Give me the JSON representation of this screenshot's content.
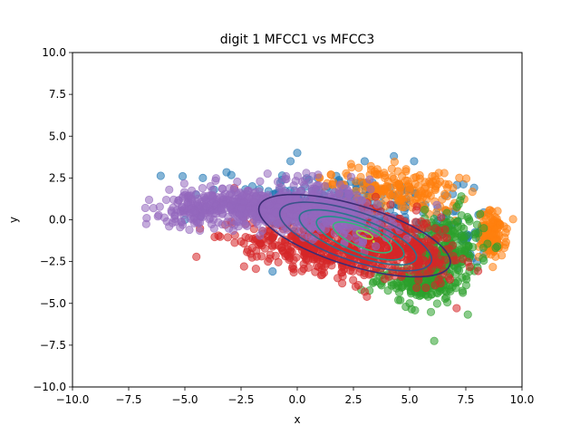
{
  "chart_data": {
    "type": "scatter",
    "title": "digit 1 MFCC1 vs MFCC3",
    "xlabel": "x",
    "ylabel": "y",
    "xlim": [
      -10,
      10
    ],
    "ylim": [
      -10,
      10
    ],
    "xticks": [
      -10,
      -7.5,
      -5,
      -2.5,
      0,
      2.5,
      5,
      7.5,
      10
    ],
    "yticks": [
      -10,
      -7.5,
      -5,
      -2.5,
      0,
      2.5,
      5,
      7.5,
      10
    ],
    "xtick_labels": [
      "−10.0",
      "−7.5",
      "−5.0",
      "−2.5",
      "0.0",
      "2.5",
      "5.0",
      "7.5",
      "10.0"
    ],
    "ytick_labels": [
      "−10.0",
      "−7.5",
      "−5.0",
      "−2.5",
      "0.0",
      "2.5",
      "5.0",
      "7.5",
      "10.0"
    ],
    "grid": false,
    "legend": "none",
    "marker_alpha": 0.55,
    "series": [
      {
        "color": "#1f77b4",
        "clusters": [
          {
            "cx": 2.0,
            "cy": 0.8,
            "sx": 2.0,
            "sy": 1.1,
            "rho": -0.3,
            "n": 220
          },
          {
            "cx": 6.5,
            "cy": -0.5,
            "sx": 1.0,
            "sy": 1.2,
            "rho": -0.2,
            "n": 60
          }
        ],
        "points": [
          [
            0.0,
            4.0
          ],
          [
            -0.3,
            3.5
          ],
          [
            3.0,
            3.5
          ],
          [
            4.3,
            3.8
          ],
          [
            5.2,
            3.5
          ],
          [
            -5.1,
            2.6
          ],
          [
            -4.2,
            2.5
          ],
          [
            -3.7,
            1.8
          ],
          [
            -4.5,
            1.5
          ],
          [
            -4.3,
            0.2
          ],
          [
            -5.0,
            0.0
          ],
          [
            -2.0,
            2.0
          ],
          [
            7.6,
            -1.0
          ],
          [
            7.8,
            -2.3
          ],
          [
            8.0,
            -2.5
          ],
          [
            6.5,
            -3.0
          ]
        ]
      },
      {
        "color": "#ff7f0e",
        "clusters": [
          {
            "cx": 4.5,
            "cy": 1.8,
            "sx": 1.4,
            "sy": 0.7,
            "rho": -0.4,
            "n": 180
          },
          {
            "cx": 8.7,
            "cy": -0.9,
            "sx": 0.3,
            "sy": 0.7,
            "rho": 0.0,
            "n": 110
          }
        ],
        "points": [
          [
            6.3,
            2.8
          ],
          [
            6.0,
            2.6
          ],
          [
            7.0,
            1.0
          ],
          [
            1.5,
            2.7
          ],
          [
            1.0,
            2.5
          ],
          [
            6.7,
            0.5
          ],
          [
            9.0,
            -1.5
          ],
          [
            8.5,
            -1.8
          ]
        ]
      },
      {
        "color": "#2ca02c",
        "clusters": [
          {
            "cx": 6.5,
            "cy": -2.2,
            "sx": 0.8,
            "sy": 1.3,
            "rho": 0.2,
            "n": 260
          },
          {
            "cx": 5.3,
            "cy": -3.7,
            "sx": 1.0,
            "sy": 0.5,
            "rho": 0.0,
            "n": 120
          }
        ],
        "points": [
          [
            7.3,
            1.4
          ],
          [
            4.5,
            -4.8
          ],
          [
            5.0,
            -5.0
          ],
          [
            5.5,
            -4.5
          ],
          [
            8.3,
            -0.5
          ],
          [
            8.0,
            -0.3
          ]
        ]
      },
      {
        "color": "#d62728",
        "clusters": [
          {
            "cx": 1.3,
            "cy": -1.7,
            "sx": 1.8,
            "sy": 0.8,
            "rho": -0.4,
            "n": 430
          },
          {
            "cx": 4.6,
            "cy": -1.4,
            "sx": 1.2,
            "sy": 1.1,
            "rho": -0.5,
            "n": 300
          }
        ],
        "points": [
          [
            -2.8,
            1.9
          ],
          [
            -1.4,
            1.3
          ],
          [
            -1.0,
            -1.5
          ],
          [
            -2.5,
            -1.3
          ],
          [
            -2.2,
            -1.8
          ],
          [
            -3.2,
            -0.3
          ],
          [
            -1.8,
            -2.2
          ],
          [
            2.0,
            -3.8
          ],
          [
            3.0,
            -4.3
          ],
          [
            3.1,
            -4.6
          ],
          [
            2.6,
            -4.0
          ],
          [
            5.8,
            -3.2
          ],
          [
            6.2,
            -2.0
          ],
          [
            -1.3,
            -2.5
          ]
        ]
      },
      {
        "color": "#9467bd",
        "clusters": [
          {
            "cx": -1.8,
            "cy": 0.7,
            "sx": 1.6,
            "sy": 0.6,
            "rho": -0.35,
            "n": 430
          },
          {
            "cx": 1.5,
            "cy": 0.6,
            "sx": 1.3,
            "sy": 0.9,
            "rho": -0.45,
            "n": 300
          },
          {
            "cx": -4.6,
            "cy": 0.6,
            "sx": 0.7,
            "sy": 0.5,
            "rho": 0.0,
            "n": 90
          }
        ],
        "points": [
          [
            -6.7,
            0.1
          ],
          [
            -6.2,
            0.2
          ],
          [
            -5.7,
            -0.4
          ],
          [
            -6.4,
            0.7
          ],
          [
            -5.5,
            1.2
          ],
          [
            -5.8,
            -0.1
          ],
          [
            -5.1,
            -0.3
          ],
          [
            -4.8,
            -0.6
          ],
          [
            -0.5,
            2.6
          ],
          [
            0.4,
            2.8
          ],
          [
            -4.4,
            -0.2
          ],
          [
            3.5,
            -0.8
          ],
          [
            4.2,
            -0.3
          ],
          [
            2.6,
            -1.1
          ]
        ]
      }
    ],
    "contours": [
      {
        "color": "#3b2c74",
        "cx": 2.55,
        "cy": -0.95,
        "rx": 4.6,
        "ry": 1.75,
        "angle_deg": -24
      },
      {
        "color": "#3b528b",
        "cx": 2.6,
        "cy": -1.0,
        "rx": 3.7,
        "ry": 1.4,
        "angle_deg": -26
      },
      {
        "color": "#2c728e",
        "cx": 2.7,
        "cy": -1.05,
        "rx": 2.9,
        "ry": 1.05,
        "angle_deg": -28
      },
      {
        "color": "#21918c",
        "cx": 2.8,
        "cy": -1.1,
        "rx": 2.2,
        "ry": 0.8,
        "angle_deg": -30
      },
      {
        "color": "#35b779",
        "cx": 2.9,
        "cy": -1.05,
        "rx": 1.5,
        "ry": 0.55,
        "angle_deg": -32
      },
      {
        "color": "#90d743",
        "cx": 3.0,
        "cy": -0.9,
        "rx": 0.4,
        "ry": 0.17,
        "angle_deg": -30
      }
    ]
  }
}
